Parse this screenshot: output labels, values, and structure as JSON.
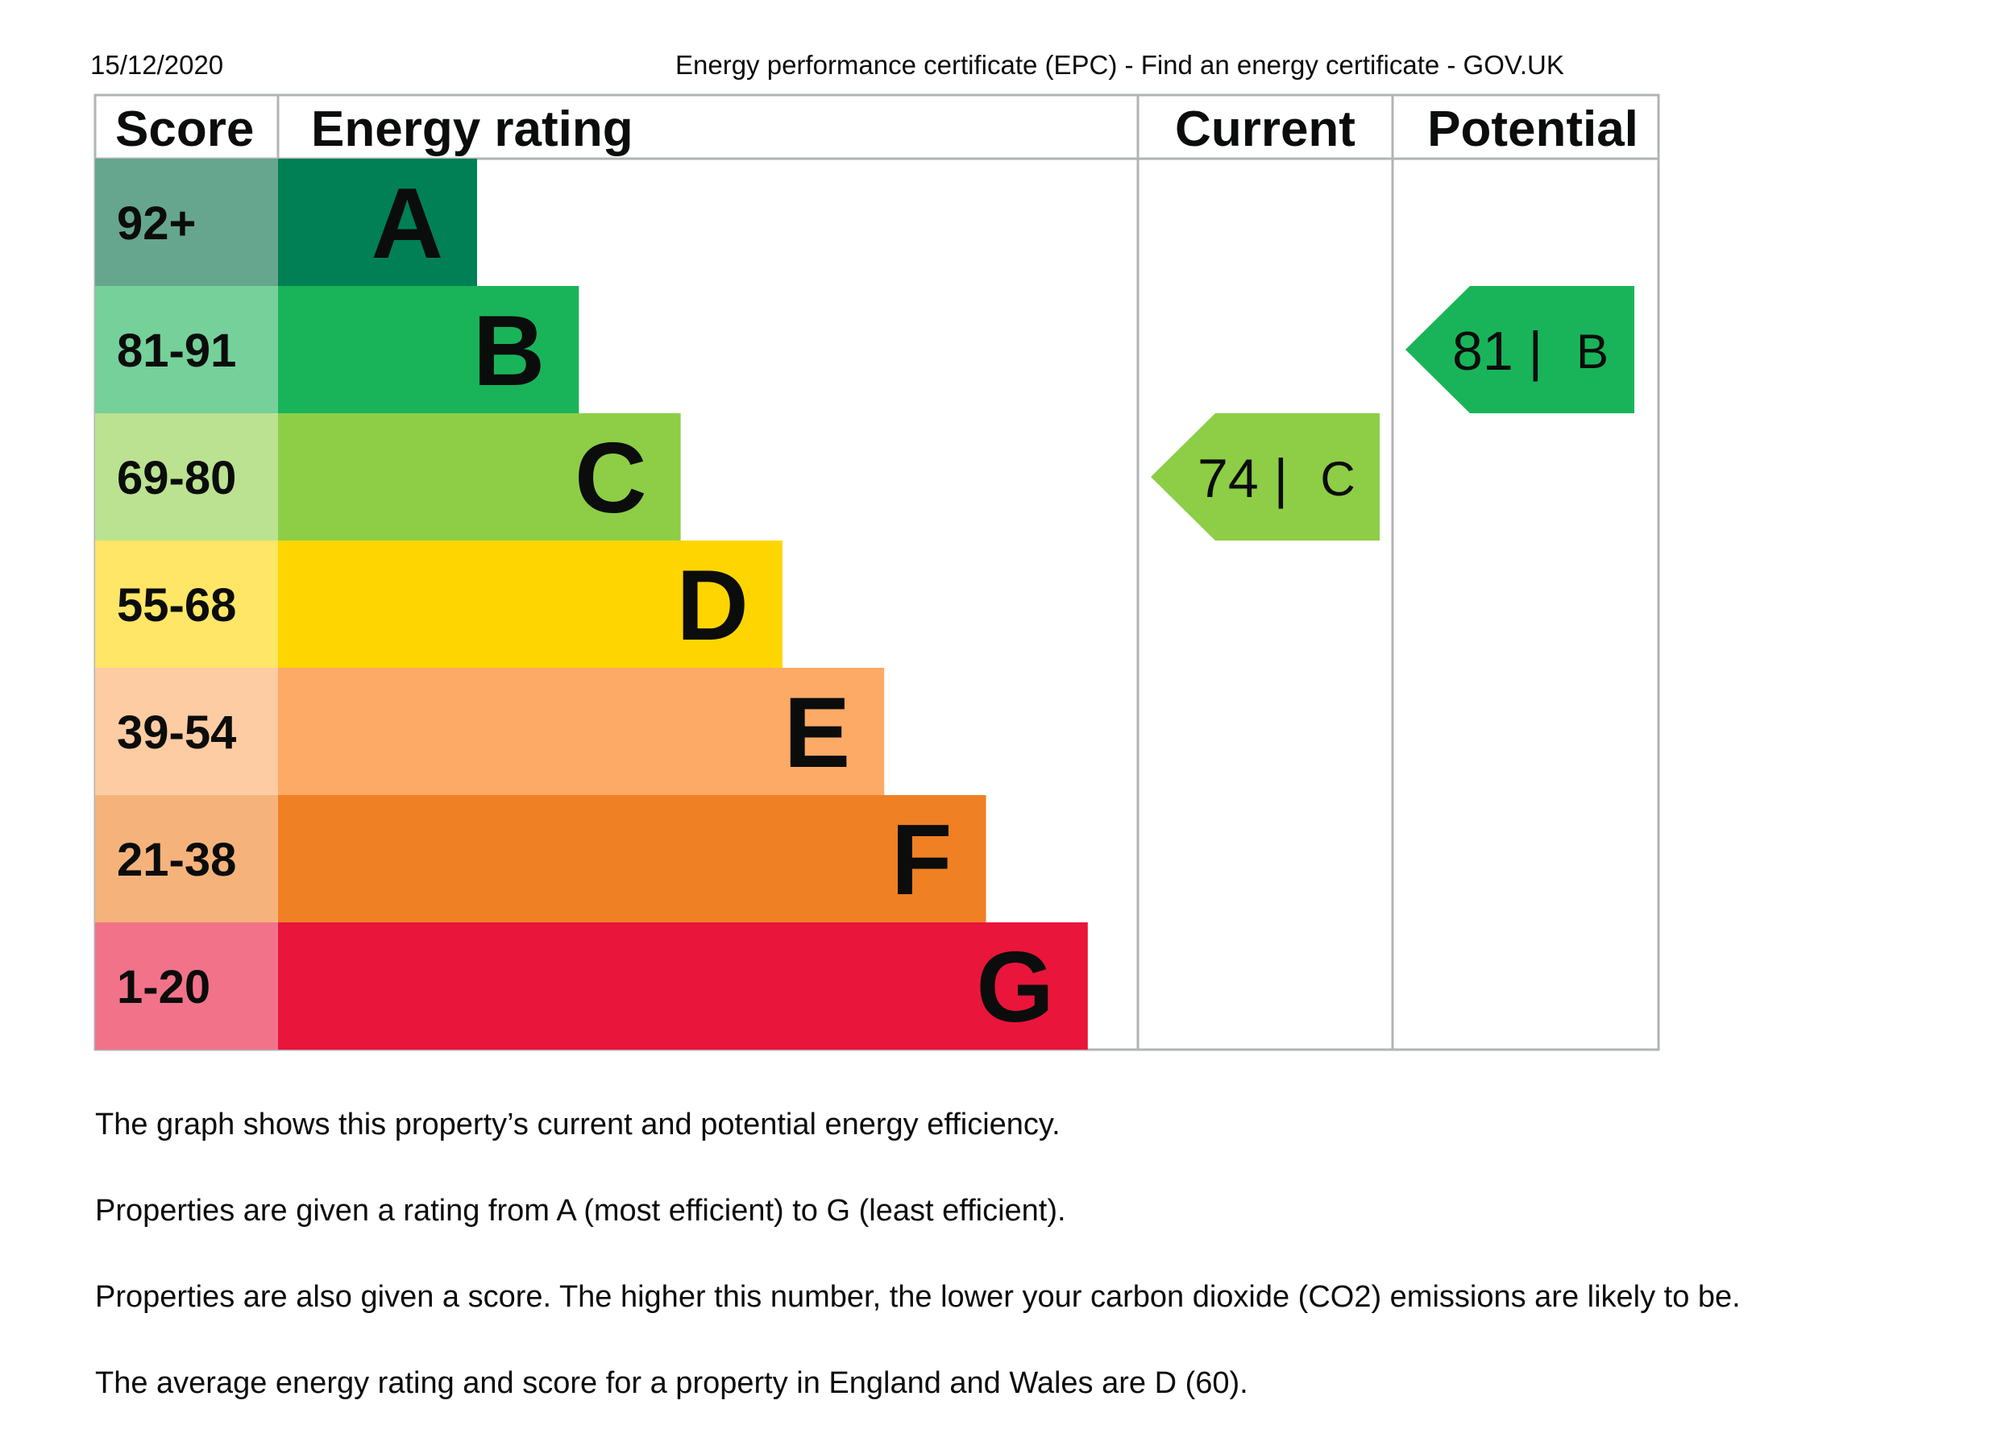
{
  "header": {
    "date": "15/12/2020",
    "page_title": "Energy performance certificate (EPC) - Find an energy certificate - GOV.UK"
  },
  "table": {
    "score_header": "Score",
    "rating_header": "Energy rating",
    "current_header": "Current",
    "potential_header": "Potential"
  },
  "chart_data": {
    "type": "table",
    "bands": [
      {
        "letter": "A",
        "score": "92+",
        "bar_color": "#008054",
        "score_bg": "#66a68e"
      },
      {
        "letter": "B",
        "score": "81-91",
        "bar_color": "#19b459",
        "score_bg": "#75d099"
      },
      {
        "letter": "C",
        "score": "69-80",
        "bar_color": "#8dce46",
        "score_bg": "#bbe290"
      },
      {
        "letter": "D",
        "score": "55-68",
        "bar_color": "#ffd500",
        "score_bg": "#ffe666"
      },
      {
        "letter": "E",
        "score": "39-54",
        "bar_color": "#fcaa65",
        "score_bg": "#fdcca3"
      },
      {
        "letter": "F",
        "score": "21-38",
        "bar_color": "#ef8023",
        "score_bg": "#f5b37b"
      },
      {
        "letter": "G",
        "score": "1-20",
        "bar_color": "#e9153b",
        "score_bg": "#f27389"
      }
    ],
    "current": {
      "value": 74,
      "band": "C",
      "label": "74 |",
      "letter": "C",
      "color": "#8dce46"
    },
    "potential": {
      "value": 81,
      "band": "B",
      "label": "81 |",
      "letter": "B",
      "color": "#19b459"
    }
  },
  "explanations": [
    "The graph shows this property’s current and potential energy efficiency.",
    "Properties are given a rating from A (most efficient) to G (least efficient).",
    "Properties are also given a score. The higher this number, the lower your carbon dioxide (CO2) emissions are likely to be.",
    "The average energy rating and score for a property in England and Wales are D (60)."
  ]
}
